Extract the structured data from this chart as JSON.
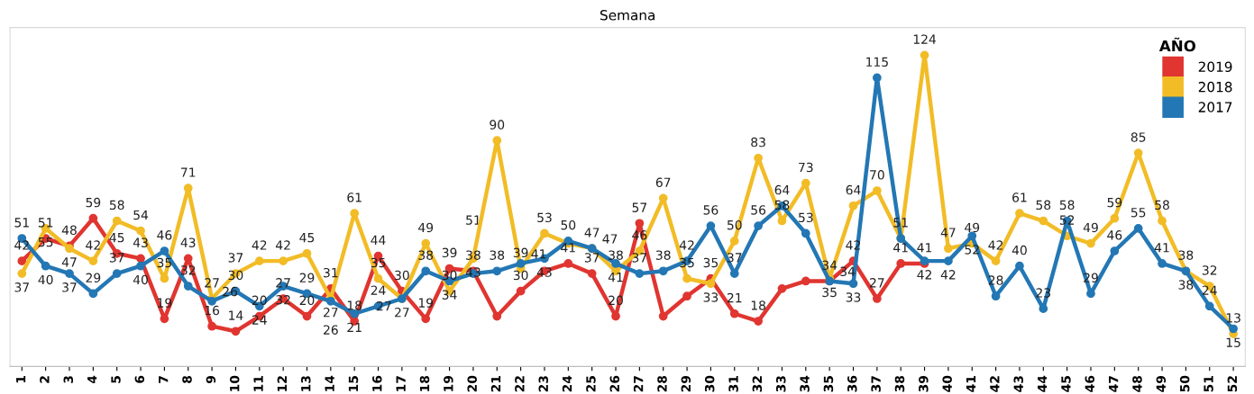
{
  "chart_data": {
    "type": "line",
    "title": "Semana",
    "legend_title": "AÑO",
    "legend": "top right",
    "grid": false,
    "marker": "circle",
    "line_style": "solid",
    "tick_labels": "x",
    "ylim": [
      0,
      135
    ],
    "categories": [
      "1",
      "2",
      "3",
      "4",
      "5",
      "6",
      "7",
      "8",
      "9",
      "10",
      "11",
      "12",
      "13",
      "14",
      "15",
      "16",
      "17",
      "18",
      "19",
      "20",
      "21",
      "22",
      "23",
      "24",
      "25",
      "26",
      "27",
      "28",
      "29",
      "30",
      "31",
      "32",
      "33",
      "34",
      "35",
      "36",
      "37",
      "38",
      "39",
      "40",
      "41",
      "42",
      "43",
      "44",
      "45",
      "46",
      "47",
      "48",
      "49",
      "50",
      "51",
      "52"
    ],
    "series": [
      {
        "name": "2019",
        "color": "#e03530",
        "values": [
          42,
          51,
          48,
          59,
          45,
          43,
          19,
          43,
          16,
          14,
          20,
          27,
          20,
          31,
          18,
          44,
          30,
          19,
          39,
          38,
          20,
          30,
          38,
          41,
          37,
          20,
          57,
          20,
          28,
          35,
          21,
          18,
          31,
          34,
          34,
          42,
          27,
          41,
          41,
          null,
          null,
          null,
          null,
          null,
          null,
          null,
          null,
          null,
          null,
          null,
          null,
          null
        ],
        "value_labels": [
          "42",
          "51",
          "48",
          "59",
          "45",
          "43",
          "19",
          "43",
          "16",
          "14",
          "20",
          "27",
          "20",
          "31",
          "18",
          "44",
          "30",
          "19",
          "39",
          "38",
          null,
          "30",
          null,
          "41",
          "37",
          "20",
          "57",
          null,
          null,
          "35",
          "21",
          "18",
          null,
          null,
          "34",
          "42",
          "27",
          "41",
          "41",
          null,
          null,
          null,
          null,
          null,
          null,
          null,
          null,
          null,
          null,
          null,
          null,
          null
        ]
      },
      {
        "name": "2018",
        "color": "#f2bc26",
        "values": [
          37,
          55,
          47,
          42,
          58,
          54,
          35,
          71,
          27,
          37,
          42,
          42,
          45,
          27,
          61,
          35,
          27,
          49,
          30,
          43,
          90,
          39,
          53,
          49,
          47,
          38,
          46,
          67,
          35,
          33,
          50,
          83,
          58,
          73,
          35,
          64,
          70,
          51,
          124,
          47,
          49,
          42,
          61,
          58,
          52,
          49,
          59,
          85,
          58,
          38,
          32,
          13
        ],
        "value_labels": [
          "37",
          "55",
          "47",
          "42",
          "58",
          "54",
          "35",
          "71",
          "27",
          "37",
          "42",
          "42",
          "45",
          "27",
          "61",
          "35",
          "27",
          "49",
          "30",
          "43",
          "90",
          "39",
          "53",
          null,
          "47",
          "38",
          "46",
          "67",
          "35",
          "33",
          "50",
          "83",
          "58",
          "73",
          "35",
          "64",
          "70",
          null,
          "124",
          "47",
          "49",
          "42",
          "61",
          "58",
          "52",
          "49",
          "59",
          "85",
          "58",
          "38",
          "32",
          "13"
        ]
      },
      {
        "name": "2017",
        "color": "#2377b4",
        "values": [
          51,
          40,
          37,
          29,
          37,
          40,
          46,
          32,
          26,
          30,
          24,
          32,
          29,
          26,
          21,
          24,
          27,
          38,
          34,
          37,
          38,
          41,
          43,
          50,
          47,
          41,
          37,
          38,
          42,
          56,
          37,
          56,
          64,
          53,
          34,
          33,
          115,
          51,
          42,
          42,
          52,
          28,
          40,
          23,
          58,
          29,
          46,
          55,
          41,
          38,
          24,
          15
        ],
        "value_labels": [
          "51",
          "40",
          "37",
          "29",
          "37",
          "40",
          "46",
          "32",
          "26",
          "30",
          "24",
          "32",
          "29",
          "26",
          "21",
          "24",
          "27",
          "38",
          "34",
          null,
          "38",
          "41",
          "43",
          "50",
          "47",
          "41",
          "37",
          "38",
          "42",
          "56",
          "37",
          "56",
          "64",
          "53",
          "34",
          "33",
          "115",
          "51",
          "42",
          "42",
          "52",
          "28",
          "40",
          "23",
          "58",
          "29",
          "46",
          "55",
          "41",
          "38",
          "24",
          "15"
        ]
      }
    ],
    "annotations": [
      {
        "text": "51",
        "x": "20",
        "y": 51
      }
    ]
  }
}
